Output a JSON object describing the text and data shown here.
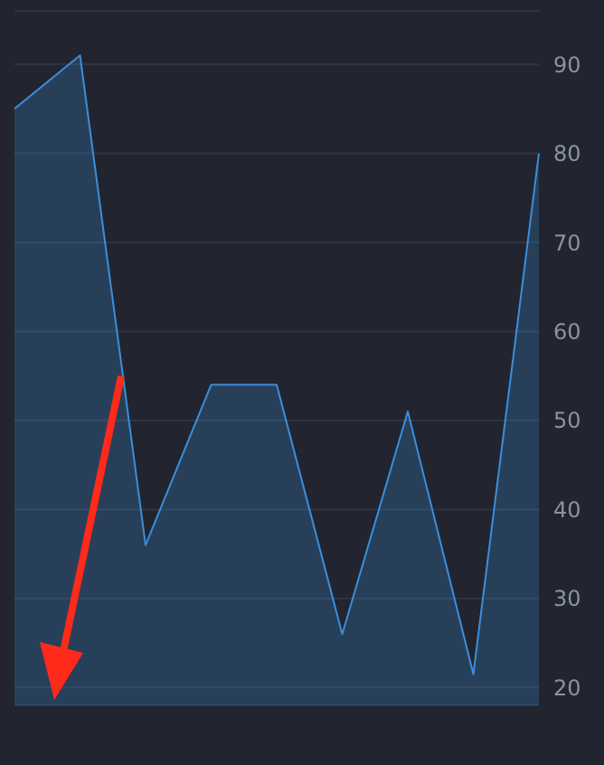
{
  "chart_data": {
    "type": "area",
    "categories": [
      null,
      null,
      null,
      null,
      null,
      null,
      null,
      null,
      null
    ],
    "series": [
      {
        "color": "#3a8fdc",
        "values": [
          85,
          91,
          36,
          54,
          54,
          26,
          51,
          21.5,
          80
        ]
      }
    ],
    "ylim": [
      18,
      96
    ],
    "yticks": [
      20,
      30,
      40,
      50,
      60,
      70,
      80,
      90
    ],
    "grid": "y",
    "tick_labels": "y"
  }
}
